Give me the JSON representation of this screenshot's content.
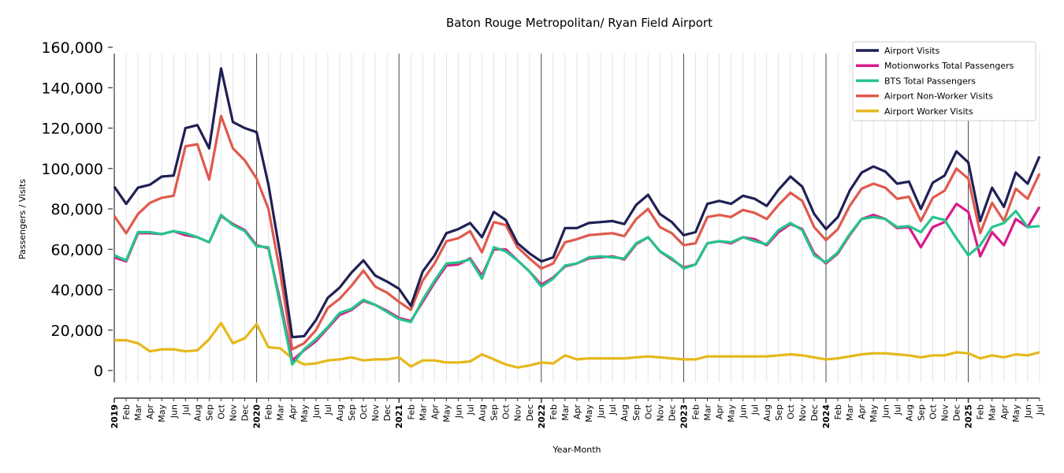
{
  "chart_data": {
    "type": "line",
    "title": "Baton Rouge Metropolitan/ Ryan Field Airport",
    "xlabel": "Year-Month",
    "ylabel": "Passengers / Visits",
    "ylim": [
      0,
      160000
    ],
    "yticks": [
      0,
      20000,
      40000,
      60000,
      80000,
      100000,
      120000,
      140000,
      160000
    ],
    "ytick_labels": [
      "0",
      "20,000",
      "40,000",
      "60,000",
      "80,000",
      "100,000",
      "120,000",
      "140,000",
      "160,000"
    ],
    "grid": "vertical-monthly",
    "year_separators": true,
    "legend_position": "top-right",
    "x": [
      "2019",
      "Feb",
      "Mar",
      "Apr",
      "May",
      "Jun",
      "Jul",
      "Aug",
      "Sep",
      "Oct",
      "Nov",
      "Dec",
      "2020",
      "Feb",
      "Mar",
      "Apr",
      "May",
      "Jun",
      "Jul",
      "Aug",
      "Sep",
      "Oct",
      "Nov",
      "Dec",
      "2021",
      "Feb",
      "Mar",
      "Apr",
      "May",
      "Jun",
      "Jul",
      "Aug",
      "Sep",
      "Oct",
      "Nov",
      "Dec",
      "2022",
      "Feb",
      "Mar",
      "Apr",
      "May",
      "Jun",
      "Jul",
      "Aug",
      "Sep",
      "Oct",
      "Nov",
      "Dec",
      "2023",
      "Feb",
      "Mar",
      "Apr",
      "May",
      "Jun",
      "Jul",
      "Aug",
      "Sep",
      "Oct",
      "Nov",
      "Dec",
      "2024",
      "Feb",
      "Mar",
      "Apr",
      "May",
      "Jun",
      "Jul",
      "Aug",
      "Sep",
      "Oct",
      "Nov",
      "Dec",
      "2025",
      "Feb",
      "Mar",
      "Apr",
      "May",
      "Jun",
      "Jul"
    ],
    "series": [
      {
        "name": "Airport Visits",
        "color": "#1f2155",
        "values": [
          91000,
          82500,
          90500,
          92000,
          96000,
          96500,
          120000,
          121500,
          110000,
          149500,
          123000,
          120000,
          118000,
          92000,
          57000,
          16500,
          17000,
          25000,
          36000,
          41000,
          48500,
          54500,
          47000,
          44000,
          40500,
          32000,
          49000,
          57000,
          68000,
          70000,
          73000,
          66000,
          78500,
          74500,
          63000,
          58000,
          54000,
          56000,
          70500,
          70500,
          73000,
          73500,
          74000,
          72500,
          82000,
          87000,
          77500,
          73500,
          67000,
          68500,
          82500,
          84000,
          82500,
          86500,
          85000,
          81500,
          89500,
          96000,
          91000,
          77500,
          70000,
          76000,
          89000,
          98000,
          101000,
          98500,
          92500,
          93500,
          80000,
          93000,
          96500,
          108500,
          103000,
          74000,
          90500,
          81000,
          98000,
          92500,
          106000
        ]
      },
      {
        "name": "Motionworks Total Passengers",
        "color": "#d81b8a",
        "values": [
          56000,
          54000,
          68000,
          68000,
          67500,
          69000,
          67000,
          66000,
          63500,
          76500,
          72500,
          69500,
          62000,
          60500,
          34000,
          5000,
          10000,
          14500,
          21000,
          27500,
          30000,
          34500,
          32500,
          29500,
          26000,
          24500,
          34000,
          43500,
          52000,
          52500,
          55500,
          47000,
          60000,
          60000,
          54500,
          49000,
          42500,
          46000,
          51500,
          53000,
          55500,
          56000,
          56500,
          55000,
          62500,
          66000,
          59000,
          55000,
          51000,
          52500,
          63000,
          64000,
          63000,
          66000,
          65000,
          62000,
          68500,
          72500,
          70000,
          58000,
          53000,
          58000,
          67000,
          75000,
          77000,
          75000,
          70500,
          71000,
          61000,
          71000,
          73500,
          82500,
          78500,
          56500,
          68500,
          62000,
          75000,
          71000,
          81000
        ]
      },
      {
        "name": "BTS Total Passengers",
        "color": "#26c48d",
        "values": [
          57000,
          54500,
          68500,
          68500,
          67500,
          69000,
          68000,
          66000,
          63500,
          77000,
          72000,
          69000,
          61500,
          61000,
          32000,
          3000,
          10500,
          15500,
          21500,
          28500,
          30500,
          35000,
          32500,
          29000,
          25500,
          24000,
          35000,
          44500,
          53000,
          53500,
          55000,
          45500,
          61000,
          59000,
          54500,
          49000,
          41500,
          45500,
          52000,
          53000,
          56000,
          56500,
          56000,
          55500,
          63000,
          66000,
          59000,
          55500,
          50500,
          52500,
          63000,
          64000,
          63500,
          66000,
          64000,
          62500,
          69500,
          73000,
          69500,
          57000,
          53500,
          58500,
          67500,
          75000,
          76000,
          75000,
          71000,
          71500,
          68500,
          76000,
          74500,
          65500,
          57000,
          62000,
          71000,
          73000,
          79000,
          71000,
          71500
        ]
      },
      {
        "name": "Airport Non-Worker Visits",
        "color": "#e05a4e",
        "values": [
          76500,
          68000,
          77500,
          83000,
          85500,
          86500,
          111000,
          112000,
          94500,
          126000,
          110000,
          104000,
          95000,
          80000,
          48000,
          10500,
          13500,
          20000,
          31000,
          35500,
          42000,
          49500,
          41500,
          38500,
          34000,
          30000,
          44500,
          53000,
          64000,
          65500,
          69000,
          58500,
          73500,
          72000,
          61000,
          55500,
          50500,
          53000,
          63500,
          65000,
          67000,
          67500,
          68000,
          66500,
          75000,
          80000,
          71000,
          68000,
          62000,
          63000,
          76000,
          77000,
          76000,
          79500,
          78000,
          75000,
          82000,
          88000,
          84000,
          71000,
          64500,
          70000,
          81500,
          90000,
          92500,
          90500,
          85000,
          86000,
          74000,
          85500,
          89000,
          100000,
          95000,
          68000,
          83000,
          74000,
          90000,
          85000,
          97500
        ]
      },
      {
        "name": "Airport Worker Visits",
        "color": "#e6b81a",
        "values": [
          15000,
          15000,
          13500,
          9500,
          10500,
          10500,
          9500,
          10000,
          15500,
          23500,
          13500,
          16000,
          23000,
          11500,
          11000,
          6000,
          3000,
          3500,
          5000,
          5500,
          6500,
          5000,
          5500,
          5500,
          6500,
          2000,
          5000,
          5000,
          4000,
          4000,
          4500,
          8000,
          5500,
          3000,
          1500,
          2500,
          4000,
          3500,
          7500,
          5500,
          6000,
          6000,
          6000,
          6000,
          6500,
          7000,
          6500,
          6000,
          5500,
          5500,
          7000,
          7000,
          7000,
          7000,
          7000,
          7000,
          7500,
          8000,
          7500,
          6500,
          5500,
          6000,
          7000,
          8000,
          8500,
          8500,
          8000,
          7500,
          6500,
          7500,
          7500,
          9000,
          8500,
          6000,
          7500,
          6500,
          8000,
          7500,
          9000
        ]
      }
    ]
  }
}
